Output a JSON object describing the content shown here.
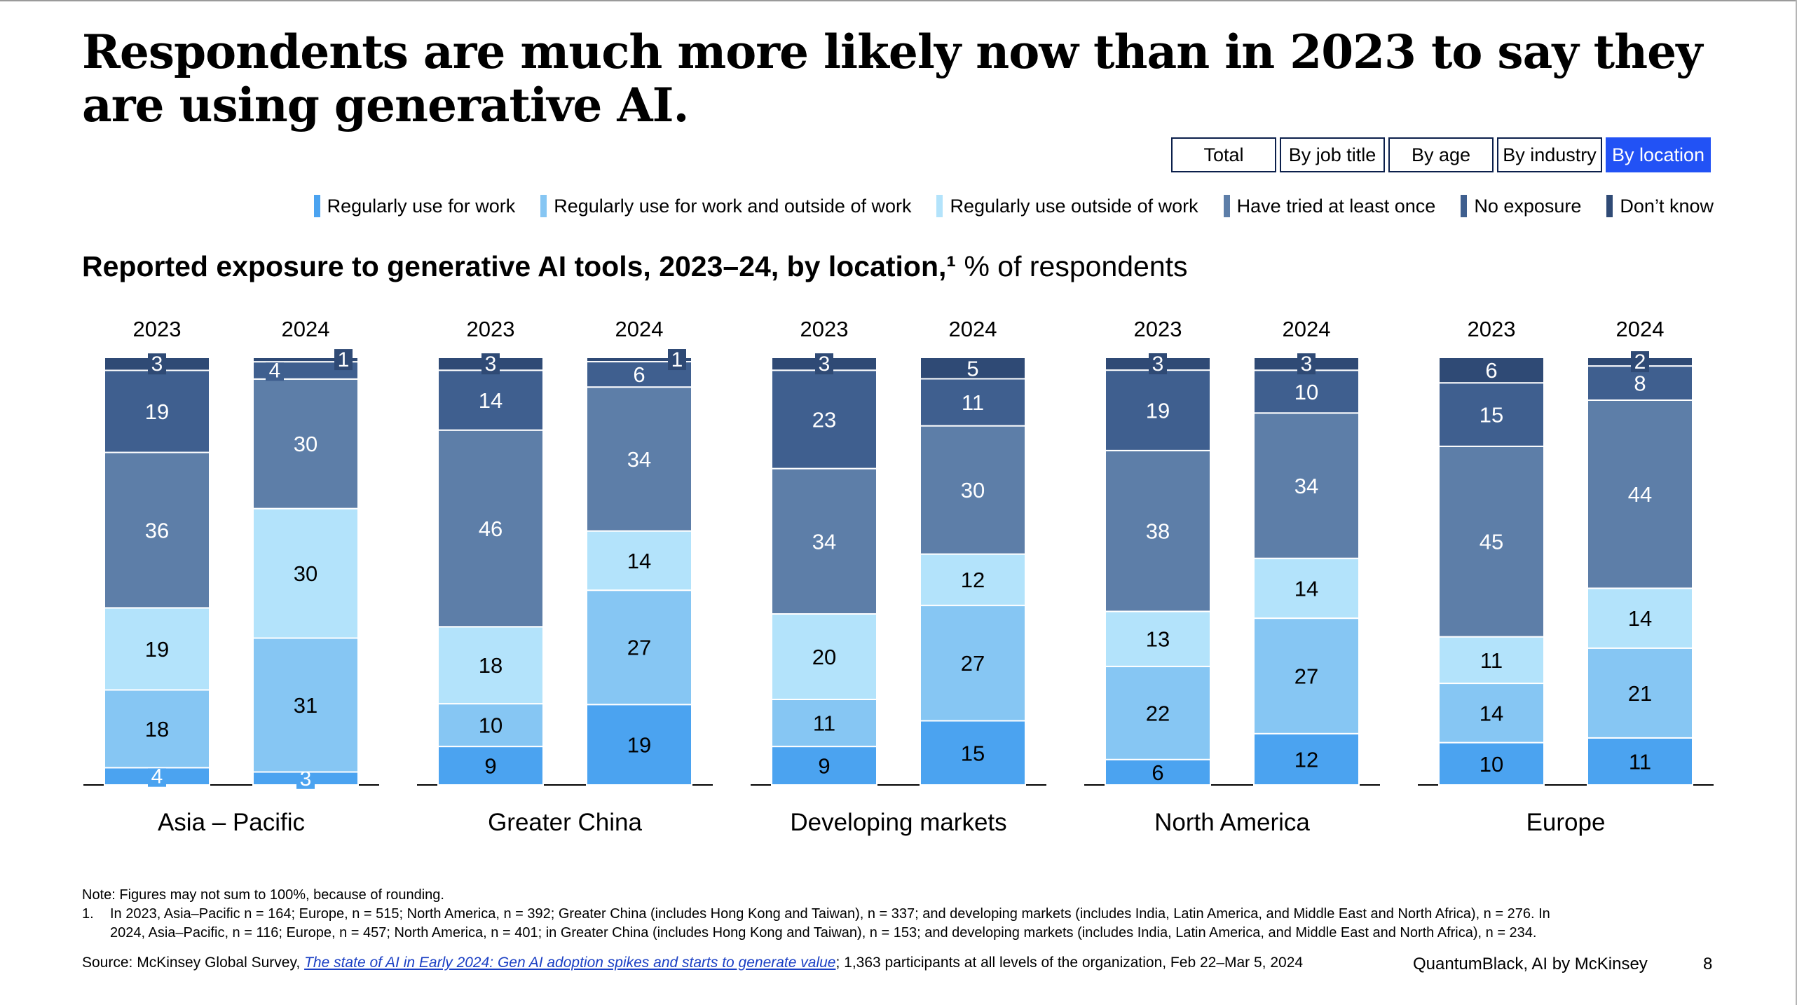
{
  "headline": "Respondents are much more likely now than in 2023 to say they are using generative AI.",
  "tabs": [
    {
      "label": "Total",
      "active": false
    },
    {
      "label": "By job title",
      "active": false
    },
    {
      "label": "By age",
      "active": false
    },
    {
      "label": "By industry",
      "active": false
    },
    {
      "label": "By location",
      "active": true
    }
  ],
  "legend": [
    {
      "label": "Regularly use for work",
      "color": "#4ba3f0"
    },
    {
      "label": "Regularly use for work and outside of work",
      "color": "#86c6f3"
    },
    {
      "label": "Regularly use outside of work",
      "color": "#b3e3fb"
    },
    {
      "label": "Have tried at least once",
      "color": "#5d7ea8"
    },
    {
      "label": "No exposure",
      "color": "#3f5f8f"
    },
    {
      "label": "Don’t know",
      "color": "#2f4a75"
    }
  ],
  "subtitle": {
    "bold": "Reported exposure to generative AI tools, 2023–24, by location,¹",
    "normal": " % of respondents"
  },
  "chart_data": {
    "type": "bar",
    "stacked": true,
    "groups": [
      "Asia – Pacific",
      "Greater China",
      "Developing markets",
      "North America",
      "Europe"
    ],
    "years": [
      "2023",
      "2024"
    ],
    "series_order": [
      "Regularly use for work",
      "Regularly use for work and outside of work",
      "Regularly use outside of work",
      "Have tried at least once",
      "No exposure",
      "Don’t know"
    ],
    "values": [
      [
        [
          4,
          18,
          19,
          36,
          19,
          3
        ],
        [
          3,
          31,
          30,
          30,
          4,
          1
        ]
      ],
      [
        [
          9,
          10,
          18,
          46,
          14,
          3
        ],
        [
          19,
          27,
          14,
          34,
          6,
          1
        ]
      ],
      [
        [
          9,
          11,
          20,
          34,
          23,
          3
        ],
        [
          15,
          27,
          12,
          30,
          11,
          5
        ]
      ],
      [
        [
          6,
          22,
          13,
          38,
          19,
          3
        ],
        [
          12,
          27,
          14,
          34,
          10,
          3
        ]
      ],
      [
        [
          10,
          14,
          11,
          45,
          15,
          6
        ],
        [
          11,
          21,
          14,
          44,
          8,
          2
        ]
      ]
    ],
    "colors": [
      "#4ba3f0",
      "#86c6f3",
      "#b3e3fb",
      "#5d7ea8",
      "#3f5f8f",
      "#2f4a75"
    ],
    "label_colors": [
      "#000000",
      "#000000",
      "#000000",
      "#ffffff",
      "#ffffff",
      "#ffffff"
    ],
    "ylim": [
      0,
      100
    ]
  },
  "notes": {
    "note": "Note: Figures may not sum to 100%, because of rounding.",
    "footnote_num": "1.",
    "footnote_line1": "In 2023, Asia–Pacific n = 164; Europe, n = 515; North America, n = 392; Greater China (includes Hong Kong and Taiwan), n = 337; and developing markets (includes India, Latin America, and Middle East and North Africa), n = 276. In",
    "footnote_line2": "2024, Asia–Pacific, n = 116; Europe, n = 457; North America, n = 401; in Greater  China (includes Hong Kong and Taiwan), n = 153; and developing markets (includes India, Latin America, and Middle East and North Africa), n = 234."
  },
  "source": {
    "prefix": "Source: McKinsey Global Survey, ",
    "link_text": "The state of AI in Early 2024: Gen AI adoption spikes and starts to generate value",
    "suffix": "; 1,363 participants at all levels of the organization, Feb 22–Mar 5, 2024"
  },
  "brand": "QuantumBlack, AI by McKinsey",
  "page_number": "8"
}
